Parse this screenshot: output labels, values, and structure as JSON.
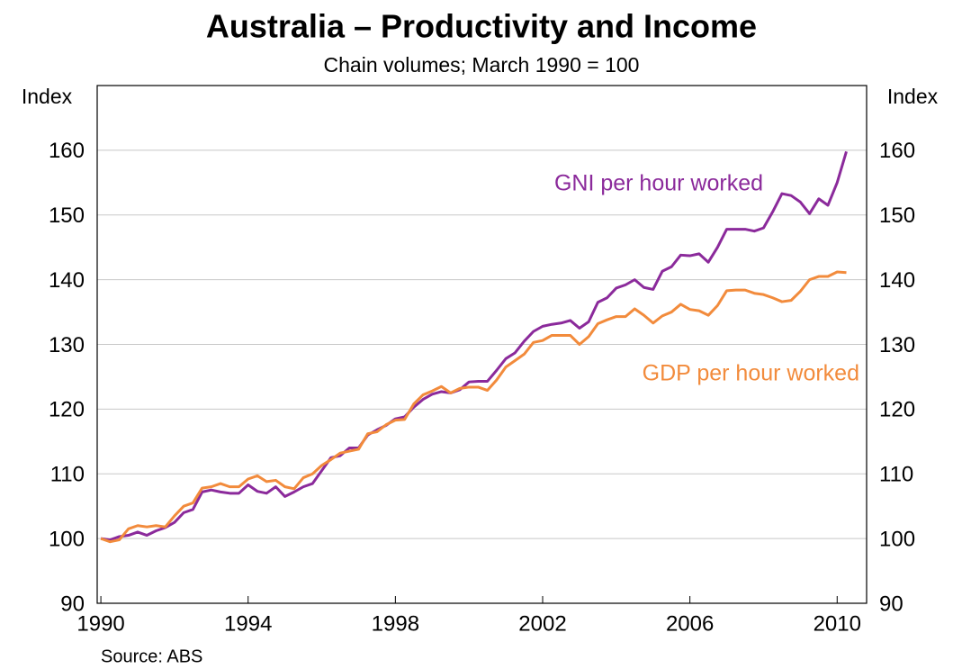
{
  "chart_data": {
    "type": "line",
    "title": "Australia – Productivity and Income",
    "subtitle": "Chain volumes; March 1990 = 100",
    "y_label": "Index",
    "y2_label": "Index",
    "source": "Source: ABS",
    "x": [
      1990,
      1990.25,
      1990.5,
      1990.75,
      1991,
      1991.25,
      1991.5,
      1991.75,
      1992,
      1992.25,
      1992.5,
      1992.75,
      1993,
      1993.25,
      1993.5,
      1993.75,
      1994,
      1994.25,
      1994.5,
      1994.75,
      1995,
      1995.25,
      1995.5,
      1995.75,
      1996,
      1996.25,
      1996.5,
      1996.75,
      1997,
      1997.25,
      1997.5,
      1997.75,
      1998,
      1998.25,
      1998.5,
      1998.75,
      1999,
      1999.25,
      1999.5,
      1999.75,
      2000,
      2000.25,
      2000.5,
      2000.75,
      2001,
      2001.25,
      2001.5,
      2001.75,
      2002,
      2002.25,
      2002.5,
      2002.75,
      2003,
      2003.25,
      2003.5,
      2003.75,
      2004,
      2004.25,
      2004.5,
      2004.75,
      2005,
      2005.25,
      2005.5,
      2005.75,
      2006,
      2006.25,
      2006.5,
      2006.75,
      2007,
      2007.25,
      2007.5,
      2007.75,
      2008,
      2008.25,
      2008.5,
      2008.75,
      2009,
      2009.25,
      2009.5,
      2009.75,
      2010,
      2010.25
    ],
    "series": [
      {
        "name": "GNI per hour worked",
        "color": "#8b2a9b",
        "values": [
          100,
          99.8,
          100.3,
          100.5,
          101,
          100.5,
          101.2,
          101.7,
          102.5,
          104,
          104.5,
          107.2,
          107.5,
          107.2,
          107,
          107,
          108.3,
          107.3,
          107,
          108,
          106.5,
          107.2,
          108,
          108.5,
          110.5,
          112.5,
          112.8,
          114,
          114,
          116,
          116.8,
          117.5,
          118.5,
          118.8,
          120.3,
          121.5,
          122.3,
          122.7,
          122.5,
          123,
          124.2,
          124.3,
          124.3,
          126,
          127.8,
          128.7,
          130.5,
          132,
          132.8,
          133.1,
          133.3,
          133.7,
          132.5,
          133.5,
          136.5,
          137.2,
          138.7,
          139.2,
          140,
          138.8,
          138.5,
          141.3,
          142,
          143.8,
          143.7,
          144,
          142.7,
          145,
          147.8,
          147.8,
          147.8,
          147.5,
          148,
          150.5,
          153.3,
          153,
          152,
          150.2,
          152.5,
          151.5,
          155,
          159.8
        ]
      },
      {
        "name": "GDP per hour worked",
        "color": "#f28b3c",
        "values": [
          100,
          99.5,
          99.8,
          101.5,
          102,
          101.8,
          102,
          101.8,
          103.5,
          105,
          105.5,
          107.8,
          108,
          108.5,
          108,
          108,
          109.2,
          109.7,
          108.8,
          109,
          108,
          107.7,
          109.4,
          110,
          111.3,
          112.2,
          113.2,
          113.5,
          113.8,
          116.2,
          116.5,
          117.6,
          118.3,
          118.4,
          120.8,
          122.2,
          122.8,
          123.5,
          122.5,
          123.2,
          123.4,
          123.4,
          122.9,
          124.5,
          126.5,
          127.5,
          128.5,
          130.3,
          130.6,
          131.4,
          131.4,
          131.4,
          130,
          131.2,
          133.2,
          133.8,
          134.3,
          134.3,
          135.5,
          134.5,
          133.3,
          134.4,
          135,
          136.2,
          135.4,
          135.2,
          134.5,
          136,
          138.3,
          138.4,
          138.4,
          137.9,
          137.7,
          137.2,
          136.6,
          136.8,
          138.2,
          140,
          140.5,
          140.5,
          141.2,
          141.1
        ]
      }
    ],
    "xlim": [
      1989.9,
      2010.8
    ],
    "xticks": [
      1990,
      1994,
      1998,
      2002,
      2006,
      2010
    ],
    "ylim": [
      90,
      170
    ],
    "yticks": [
      90,
      100,
      110,
      120,
      130,
      140,
      150,
      160
    ],
    "grid": true
  }
}
